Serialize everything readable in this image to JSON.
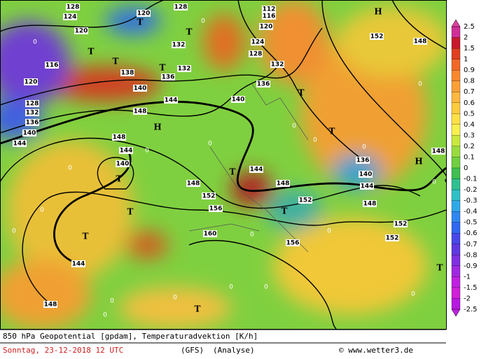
{
  "contour_labels": [
    "128",
    "124",
    "120",
    "116",
    "120",
    "128",
    "132",
    "136",
    "140",
    "144",
    "120",
    "128",
    "132",
    "132",
    "136",
    "138",
    "140",
    "144",
    "148",
    "148",
    "144",
    "140",
    "148",
    "152",
    "156",
    "160",
    "144",
    "148",
    "112",
    "116",
    "120",
    "124",
    "128",
    "132",
    "136",
    "140",
    "144",
    "148",
    "152",
    "156",
    "136",
    "140",
    "144",
    "148",
    "152",
    "152",
    "148",
    "152",
    "148"
  ],
  "pressure_centers": [
    "H",
    "T",
    "T",
    "T",
    "T",
    "T",
    "H",
    "T",
    "T",
    "T",
    "T",
    "T",
    "T",
    "T",
    "T",
    "T",
    "H"
  ],
  "zero_labels": [
    "0",
    "0",
    "0",
    "0",
    "0",
    "0",
    "0",
    "0",
    "0",
    "0",
    "0",
    "0",
    "0",
    "0",
    "0",
    "0",
    "0",
    "0",
    "0",
    "0"
  ],
  "colorbar": {
    "labels": [
      "2.5",
      "2",
      "1.5",
      "1",
      "0.9",
      "0.8",
      "0.7",
      "0.6",
      "0.5",
      "0.4",
      "0.3",
      "0.2",
      "0.1",
      "0",
      "-0.1",
      "-0.2",
      "-0.3",
      "-0.4",
      "-0.5",
      "-0.6",
      "-0.7",
      "-0.8",
      "-0.9",
      "-1",
      "-1.5",
      "-2",
      "-2.5"
    ]
  },
  "footer": {
    "title": "850 hPa Geopotential [gpdam], Temperaturadvektion [K/h]",
    "date": "Sonntag, 23-12-2018  12 UTC",
    "model": "(GFS)",
    "analysis": "(Analyse)",
    "credit": "© www.wetter3.de"
  }
}
